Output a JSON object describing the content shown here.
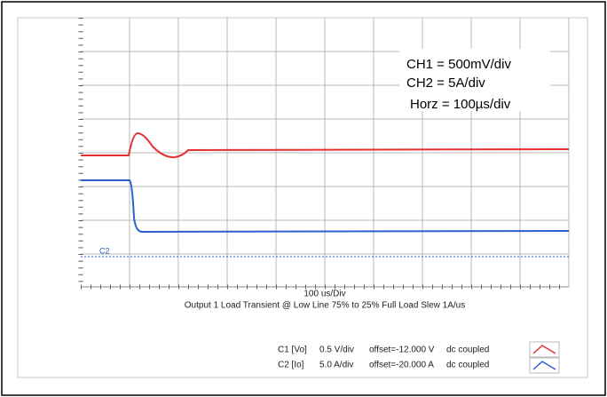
{
  "annotation": {
    "lines": [
      "CH1 = 500mV/div",
      "CH2 = 5A/div",
      "Horz = 100µs/div"
    ]
  },
  "x_scale": "100 us/Div",
  "caption": "Output 1 Load Transient @ Low Line 75% to 25% Full Load Slew 1A/us",
  "marker": "C2",
  "legend": [
    {
      "channel": "C1 [Vo]",
      "scale": "0.5 V/div",
      "offset": "offset=-12.000 V",
      "coupling": "dc coupled"
    },
    {
      "channel": "C2 [Io]",
      "scale": "5.0 A/div",
      "offset": "offset=-20.000 A",
      "coupling": "dc coupled"
    }
  ]
}
